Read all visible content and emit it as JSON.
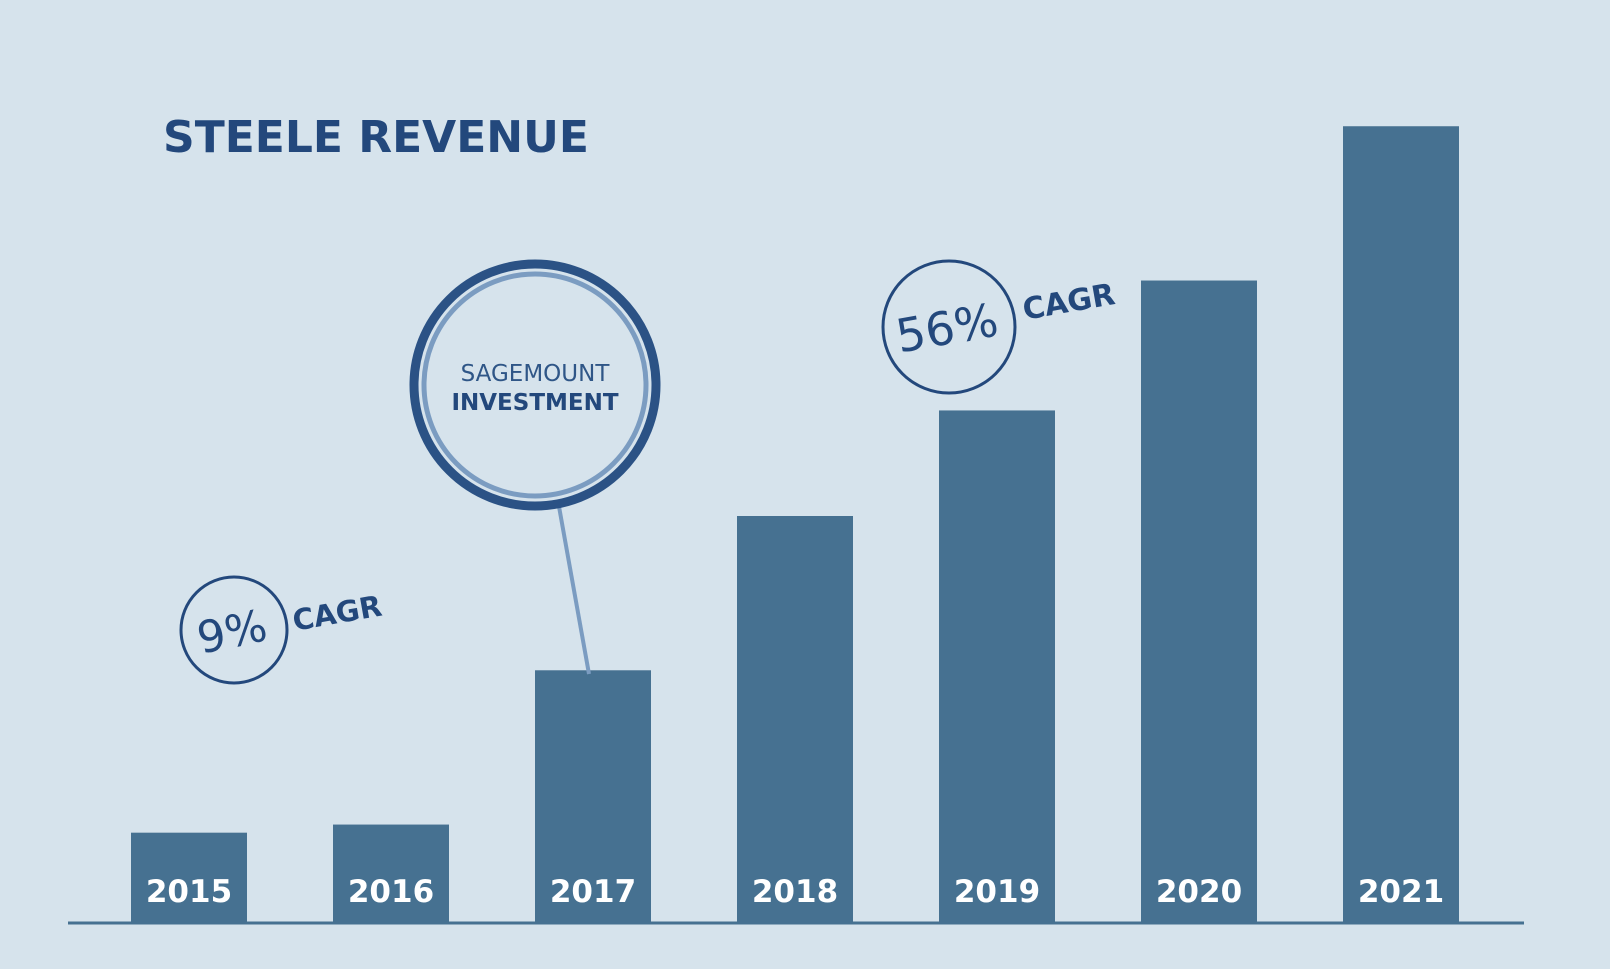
{
  "chart_data": {
    "type": "bar",
    "title": "STEELE REVENUE",
    "xlabel": "",
    "ylabel": "",
    "categories": [
      "2015",
      "2016",
      "2017",
      "2018",
      "2019",
      "2020",
      "2021"
    ],
    "values": [
      11,
      12,
      31,
      50,
      63,
      79,
      98
    ],
    "ylim": [
      0,
      100
    ],
    "grid": false,
    "legend": "none",
    "annotations": {
      "cagr_early": {
        "percent": "9%",
        "label": "CAGR"
      },
      "cagr_late": {
        "percent": "56%",
        "label": "CAGR"
      },
      "investment": {
        "line1": "SAGEMOUNT",
        "line2": "INVESTMENT",
        "category": "2017"
      }
    }
  },
  "colors": {
    "background": "#d6e3ec",
    "bar": "#467191",
    "title": "#23487c",
    "axis": "#467191",
    "bar_label": "#ffffff",
    "callout_ring_outer": "#2b5285",
    "callout_ring_inner": "#7b9cc1",
    "callout_pointer": "#7b9cc1"
  }
}
